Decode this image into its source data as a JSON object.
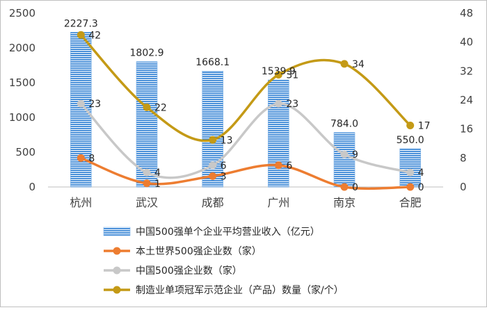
{
  "chart_data": {
    "type": "bar",
    "categories": [
      "杭州",
      "武汉",
      "成都",
      "广州",
      "南京",
      "合肥"
    ],
    "y_left": {
      "ticks": [
        "0",
        "500",
        "1000",
        "1500",
        "2000",
        "2500"
      ],
      "ylim": [
        0,
        2500
      ]
    },
    "y_right": {
      "ticks": [
        "0",
        "8",
        "16",
        "24",
        "32",
        "40",
        "48"
      ],
      "ylim": [
        0,
        48
      ]
    },
    "series": [
      {
        "name": "中国500强单个企业平均营业收入（亿元）",
        "kind": "bar",
        "axis": "left",
        "values": [
          2227.3,
          1802.9,
          1668.1,
          1539.9,
          784.0,
          550.0
        ],
        "labels": [
          "2227.3",
          "1802.9",
          "1668.1",
          "1539.9",
          "784.0",
          "550.0"
        ],
        "color": "#4a90d9"
      },
      {
        "name": "本土世界500强企业数（家）",
        "kind": "line",
        "axis": "right",
        "values": [
          8,
          1,
          3,
          6,
          0,
          0
        ],
        "labels": [
          "8",
          "1",
          "3",
          "6",
          "0",
          "0"
        ],
        "color": "#ed7d31"
      },
      {
        "name": "中国500强企业数（家）",
        "kind": "line",
        "axis": "right",
        "values": [
          23,
          4,
          6,
          23,
          9,
          4
        ],
        "labels": [
          "23",
          "4",
          "6",
          "23",
          "9",
          "4"
        ],
        "color": "#c8c8c8"
      },
      {
        "name": "制造业单项冠军示范企业（产品）数量（家/个）",
        "kind": "line",
        "axis": "right",
        "values": [
          42,
          22,
          13,
          31,
          34,
          17
        ],
        "labels": [
          "42",
          "22",
          "13",
          "31",
          "34",
          "17"
        ],
        "color": "#c49a16"
      }
    ],
    "legend_position": "bottom",
    "grid": false
  }
}
